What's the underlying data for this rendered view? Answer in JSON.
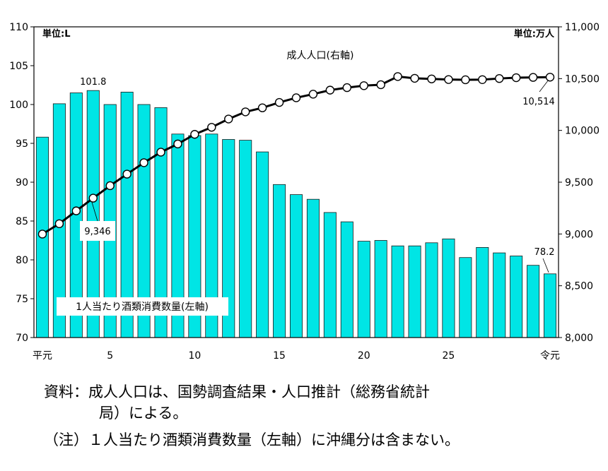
{
  "chart_data": {
    "type": "bar+line",
    "left_axis": {
      "unit_label": "単位:L",
      "ylim": [
        70,
        110
      ],
      "ticks": [
        70,
        75,
        80,
        85,
        90,
        95,
        100,
        105,
        110
      ]
    },
    "right_axis": {
      "unit_label": "単位:万人",
      "ylim": [
        8000,
        11000
      ],
      "ticks": [
        8000,
        8500,
        9000,
        9500,
        10000,
        10500,
        11000
      ],
      "tick_labels": [
        "8,000",
        "8,500",
        "9,000",
        "9,500",
        "10,000",
        "10,500",
        "11,000"
      ]
    },
    "x_tick_labels": [
      {
        "index": 0,
        "label": "平元"
      },
      {
        "index": 4,
        "label": "5"
      },
      {
        "index": 9,
        "label": "10"
      },
      {
        "index": 14,
        "label": "15"
      },
      {
        "index": 19,
        "label": "20"
      },
      {
        "index": 24,
        "label": "25"
      },
      {
        "index": 30,
        "label": "令元"
      }
    ],
    "series": [
      {
        "name": "1人当たり酒類消費数量(左軸)",
        "type": "bar",
        "axis": "left",
        "color": "#00e5e5",
        "values": [
          95.8,
          100.1,
          101.5,
          101.8,
          100.0,
          101.6,
          100.0,
          99.6,
          96.2,
          96.0,
          96.2,
          95.5,
          95.4,
          93.9,
          89.7,
          88.4,
          87.8,
          86.1,
          84.9,
          82.4,
          82.5,
          81.8,
          81.8,
          82.2,
          82.7,
          80.3,
          81.6,
          80.9,
          80.5,
          79.3,
          78.2
        ]
      },
      {
        "name": "成人人口(右軸)",
        "type": "line",
        "axis": "right",
        "color": "#000000",
        "values": [
          8999,
          9099,
          9223,
          9346,
          9466,
          9578,
          9688,
          9790,
          9869,
          9962,
          10030,
          10110,
          10179,
          10218,
          10270,
          10315,
          10350,
          10389,
          10413,
          10432,
          10441,
          10520,
          10503,
          10497,
          10491,
          10489,
          10490,
          10501,
          10509,
          10512,
          10514
        ]
      }
    ],
    "data_labels": [
      {
        "series": 0,
        "index": 3,
        "text": "101.8"
      },
      {
        "series": 0,
        "index": 30,
        "text": "78.2"
      },
      {
        "series": 1,
        "index": 3,
        "text": "9,346"
      },
      {
        "series": 1,
        "index": 30,
        "text": "10,514"
      }
    ]
  },
  "notes": [
    "資料：成人人口は、国勢調査結果・人口推計（総務省統計",
    "局）による。",
    "（注）１人当たり酒類消費数量（左軸）に沖縄分は含まない。"
  ]
}
